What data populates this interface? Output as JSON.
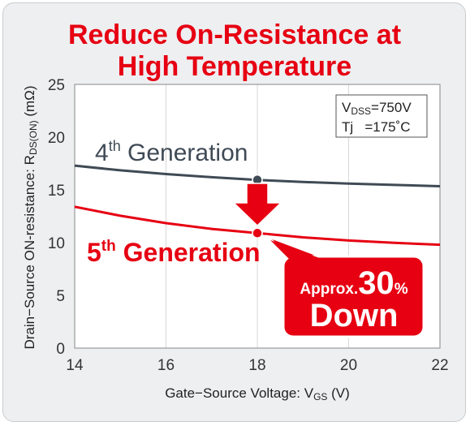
{
  "chart_data": {
    "type": "line",
    "title_lines": [
      "Reduce On-Resistance at",
      "High Temperature"
    ],
    "xlabel": "Gate−Source Voltage: V",
    "xlabel_sub": "GS",
    "xlabel_unit": " (V)",
    "ylabel": "Drain−Source ON-resistance: R",
    "ylabel_sub": "DS(ON)",
    "ylabel_unit": " (mΩ)",
    "xlim": [
      14,
      22
    ],
    "ylim": [
      0,
      25
    ],
    "xticks": [
      "14",
      "16",
      "18",
      "20",
      "22"
    ],
    "yticks": [
      "0",
      "5",
      "10",
      "15",
      "20",
      "25"
    ],
    "series": [
      {
        "name": "4th Generation",
        "color": "#3f4a55",
        "x": [
          14,
          15,
          16,
          17,
          18,
          19,
          20,
          21,
          22
        ],
        "y": [
          17.3,
          16.85,
          16.5,
          16.2,
          15.95,
          15.75,
          15.6,
          15.47,
          15.35
        ]
      },
      {
        "name": "5th Generation",
        "color": "#e60012",
        "x": [
          14,
          15,
          16,
          17,
          18,
          19,
          20,
          21,
          22
        ],
        "y": [
          13.4,
          12.55,
          11.85,
          11.3,
          10.9,
          10.5,
          10.2,
          9.98,
          9.8
        ]
      }
    ],
    "highlight_points": [
      {
        "series": 0,
        "x": 18,
        "y": 15.95
      },
      {
        "series": 1,
        "x": 18,
        "y": 10.9
      }
    ],
    "gen4_label": {
      "base": "4",
      "sup": "th",
      "rest": " Generation"
    },
    "gen5_label": {
      "base": "5",
      "sup": "th",
      "rest": " Generation"
    },
    "conditions": [
      {
        "main": "V",
        "sub": "DSS",
        "rest": "=750V"
      },
      {
        "main": "Tj   =175˚C",
        "sub": "",
        "rest": ""
      }
    ],
    "callout": {
      "prefix": "Approx.",
      "value": "30",
      "unit": "%",
      "line2": "Down"
    },
    "grid": "vertical",
    "colors": {
      "accent": "#e60012",
      "gen4": "#3f4a55",
      "grid": "#d8d8d8"
    }
  }
}
